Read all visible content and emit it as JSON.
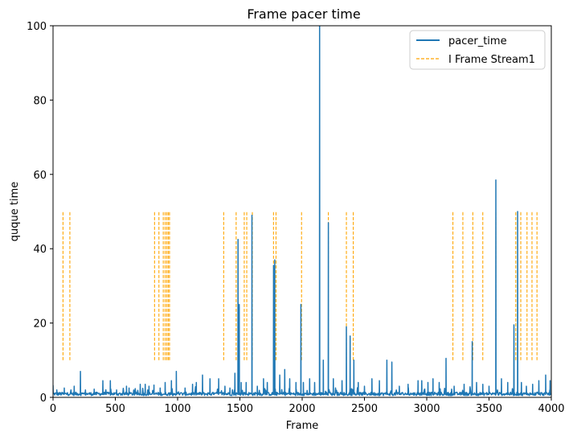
{
  "chart_data": {
    "type": "line",
    "title": "Frame pacer time",
    "xlabel": "Frame",
    "ylabel": "quque time",
    "xlim": [
      0,
      4000
    ],
    "ylim": [
      0,
      100
    ],
    "xticks": [
      0,
      500,
      1000,
      1500,
      2000,
      2500,
      3000,
      3500,
      4000
    ],
    "yticks": [
      0,
      20,
      40,
      60,
      80,
      100
    ],
    "grid": false,
    "legend_position": "top-right",
    "colors": {
      "pacer_time": "#1f77b4",
      "i_frame": "#ffa500"
    },
    "series": [
      {
        "name": "pacer_time",
        "style": "solid",
        "baseline": 0.8,
        "spikes": [
          [
            0,
            3.2
          ],
          [
            30,
            2.0
          ],
          [
            90,
            2.5
          ],
          [
            170,
            3.0
          ],
          [
            220,
            7.0
          ],
          [
            260,
            2.0
          ],
          [
            330,
            2.2
          ],
          [
            400,
            4.5
          ],
          [
            460,
            4.5
          ],
          [
            510,
            2.0
          ],
          [
            590,
            3.0
          ],
          [
            610,
            2.5
          ],
          [
            700,
            3.5
          ],
          [
            740,
            3.5
          ],
          [
            770,
            3.0
          ],
          [
            810,
            3.3
          ],
          [
            860,
            2.5
          ],
          [
            900,
            4.0
          ],
          [
            950,
            4.5
          ],
          [
            990,
            7.0
          ],
          [
            1060,
            2.5
          ],
          [
            1120,
            3.5
          ],
          [
            1150,
            4.0
          ],
          [
            1200,
            6.0
          ],
          [
            1260,
            5.0
          ],
          [
            1330,
            5.0
          ],
          [
            1380,
            3.0
          ],
          [
            1420,
            2.5
          ],
          [
            1460,
            6.5
          ],
          [
            1485,
            42.5
          ],
          [
            1495,
            25.0
          ],
          [
            1510,
            4.0
          ],
          [
            1550,
            4.0
          ],
          [
            1597,
            49.0
          ],
          [
            1640,
            3.0
          ],
          [
            1690,
            5.0
          ],
          [
            1720,
            4.0
          ],
          [
            1770,
            35.5
          ],
          [
            1780,
            37.0
          ],
          [
            1820,
            6.0
          ],
          [
            1860,
            7.5
          ],
          [
            1900,
            5.0
          ],
          [
            1950,
            4.0
          ],
          [
            1990,
            25.0
          ],
          [
            2010,
            4.0
          ],
          [
            2060,
            5.0
          ],
          [
            2100,
            4.0
          ],
          [
            2140,
            100.0
          ],
          [
            2170,
            10.0
          ],
          [
            2210,
            47.0
          ],
          [
            2250,
            5.0
          ],
          [
            2320,
            4.5
          ],
          [
            2355,
            19.0
          ],
          [
            2385,
            16.5
          ],
          [
            2415,
            10.0
          ],
          [
            2450,
            4.0
          ],
          [
            2500,
            3.0
          ],
          [
            2560,
            5.0
          ],
          [
            2620,
            4.5
          ],
          [
            2680,
            10.0
          ],
          [
            2720,
            9.5
          ],
          [
            2780,
            3.0
          ],
          [
            2850,
            3.5
          ],
          [
            2930,
            4.5
          ],
          [
            2960,
            4.5
          ],
          [
            3010,
            4.0
          ],
          [
            3050,
            5.0
          ],
          [
            3100,
            4.0
          ],
          [
            3155,
            10.5
          ],
          [
            3220,
            3.0
          ],
          [
            3300,
            3.5
          ],
          [
            3365,
            15.0
          ],
          [
            3400,
            4.0
          ],
          [
            3450,
            3.5
          ],
          [
            3500,
            3.0
          ],
          [
            3555,
            58.5
          ],
          [
            3600,
            5.0
          ],
          [
            3650,
            4.0
          ],
          [
            3700,
            19.5
          ],
          [
            3730,
            50.0
          ],
          [
            3760,
            4.0
          ],
          [
            3800,
            3.0
          ],
          [
            3850,
            3.5
          ],
          [
            3900,
            4.5
          ],
          [
            3955,
            6.0
          ],
          [
            3990,
            4.5
          ]
        ]
      },
      {
        "name": "I Frame Stream1",
        "style": "dashed",
        "y_range": [
          10,
          50
        ],
        "frames": [
          80,
          135,
          815,
          850,
          885,
          900,
          913,
          925,
          935,
          1370,
          1470,
          1535,
          1555,
          1600,
          1770,
          1790,
          1995,
          2140,
          2210,
          2355,
          2410,
          3210,
          3290,
          3370,
          3450,
          3555,
          3715,
          3755,
          3805,
          3845,
          3885
        ]
      }
    ],
    "legend": [
      "pacer_time",
      "I Frame Stream1"
    ]
  }
}
